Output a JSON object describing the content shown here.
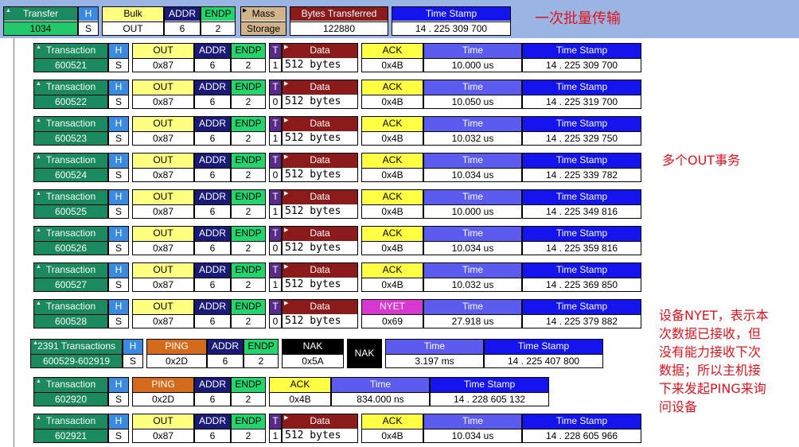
{
  "colors": {
    "transaction": "#1b8a5e",
    "h": "#3a8be0",
    "out": "#ffff80",
    "addr": "#1a1a7a",
    "endp": "#22d66e",
    "t": "#5a2a8a",
    "data": "#8b1a1a",
    "ack": "#ffff44",
    "nyet": "#d838d0",
    "time": "#5b5bf0",
    "stamp": "#1414ee",
    "ping": "#d36a1c",
    "nak": "#000000",
    "mass": "#d2b48c",
    "annotation": "#e0141e"
  },
  "transfer": {
    "title": "Transfer",
    "number": "1034",
    "h_label": "H",
    "h_value": "S",
    "bulk_label": "Bulk",
    "bulk_value": "OUT",
    "addr_label": "ADDR",
    "addr_value": "6",
    "endp_label": "ENDP",
    "endp_value": "2",
    "mass_label": "Mass",
    "mass_value": "Storage",
    "bytes_label": "Bytes Transferred",
    "bytes_value": "122880",
    "stamp_label": "Time Stamp",
    "stamp_value": "14 . 225 309 700"
  },
  "transactions": [
    {
      "label": "Transaction",
      "id": "600521",
      "h": "S",
      "token": "OUT",
      "pid": "0x87",
      "addr": "6",
      "endp": "2",
      "t": "1",
      "data": "512 bytes",
      "hs": "ACK",
      "hs_pid": "0x4B",
      "time": "10.000 us",
      "stamp": "14 . 225 309 700"
    },
    {
      "label": "Transaction",
      "id": "600522",
      "h": "S",
      "token": "OUT",
      "pid": "0x87",
      "addr": "6",
      "endp": "2",
      "t": "0",
      "data": "512 bytes",
      "hs": "ACK",
      "hs_pid": "0x4B",
      "time": "10.050 us",
      "stamp": "14 . 225 319 700"
    },
    {
      "label": "Transaction",
      "id": "600523",
      "h": "S",
      "token": "OUT",
      "pid": "0x87",
      "addr": "6",
      "endp": "2",
      "t": "1",
      "data": "512 bytes",
      "hs": "ACK",
      "hs_pid": "0x4B",
      "time": "10.032 us",
      "stamp": "14 . 225 329 750"
    },
    {
      "label": "Transaction",
      "id": "600524",
      "h": "S",
      "token": "OUT",
      "pid": "0x87",
      "addr": "6",
      "endp": "2",
      "t": "0",
      "data": "512 bytes",
      "hs": "ACK",
      "hs_pid": "0x4B",
      "time": "10.034 us",
      "stamp": "14 . 225 339 782"
    },
    {
      "label": "Transaction",
      "id": "600525",
      "h": "S",
      "token": "OUT",
      "pid": "0x87",
      "addr": "6",
      "endp": "2",
      "t": "1",
      "data": "512 bytes",
      "hs": "ACK",
      "hs_pid": "0x4B",
      "time": "10.000 us",
      "stamp": "14 . 225 349 816"
    },
    {
      "label": "Transaction",
      "id": "600526",
      "h": "S",
      "token": "OUT",
      "pid": "0x87",
      "addr": "6",
      "endp": "2",
      "t": "0",
      "data": "512 bytes",
      "hs": "ACK",
      "hs_pid": "0x4B",
      "time": "10.034 us",
      "stamp": "14 . 225 359 816"
    },
    {
      "label": "Transaction",
      "id": "600527",
      "h": "S",
      "token": "OUT",
      "pid": "0x87",
      "addr": "6",
      "endp": "2",
      "t": "1",
      "data": "512 bytes",
      "hs": "ACK",
      "hs_pid": "0x4B",
      "time": "10.032 us",
      "stamp": "14 . 225 369 850"
    },
    {
      "label": "Transaction",
      "id": "600528",
      "h": "S",
      "token": "OUT",
      "pid": "0x87",
      "addr": "6",
      "endp": "2",
      "t": "0",
      "data": "512 bytes",
      "hs": "NYET",
      "hs_pid": "0x69",
      "time": "27.918 us",
      "stamp": "14 . 225 379 882"
    }
  ],
  "group": {
    "label": "2391 Transactions",
    "id": "600529-602919",
    "h": "S",
    "token": "PING",
    "pid": "0x2D",
    "addr": "6",
    "endp": "2",
    "hs": "NAK",
    "hs_pid": "0x5A",
    "nak2": "NAK",
    "time": "3.197 ms",
    "stamp": "14 . 225 407 800"
  },
  "ping": {
    "label": "Transaction",
    "id": "602920",
    "h": "S",
    "token": "PING",
    "pid": "0x2D",
    "addr": "6",
    "endp": "2",
    "hs": "ACK",
    "hs_pid": "0x4B",
    "time": "834.000 ns",
    "stamp": "14 . 228 605 132"
  },
  "last": {
    "label": "Transaction",
    "id": "602921",
    "h": "S",
    "token": "OUT",
    "pid": "0x87",
    "addr": "6",
    "endp": "2",
    "t": "1",
    "data": "512 bytes",
    "hs": "ACK",
    "hs_pid": "0x4B",
    "time": "10.034 us",
    "stamp": "14 . 228 605 966"
  },
  "headers": {
    "h": "H",
    "addr": "ADDR",
    "endp": "ENDP",
    "t": "T",
    "data": "Data",
    "time": "Time",
    "stamp": "Time Stamp"
  },
  "annotations": {
    "bulk": "一次批量传输",
    "multi_out": "多个OUT事务",
    "nyet_lines": [
      "设备NYET，表示本",
      "次数据已接收，但",
      "没有能力接收下次",
      "数据；所以主机接",
      "下来发起PING来询",
      "问设备"
    ]
  }
}
